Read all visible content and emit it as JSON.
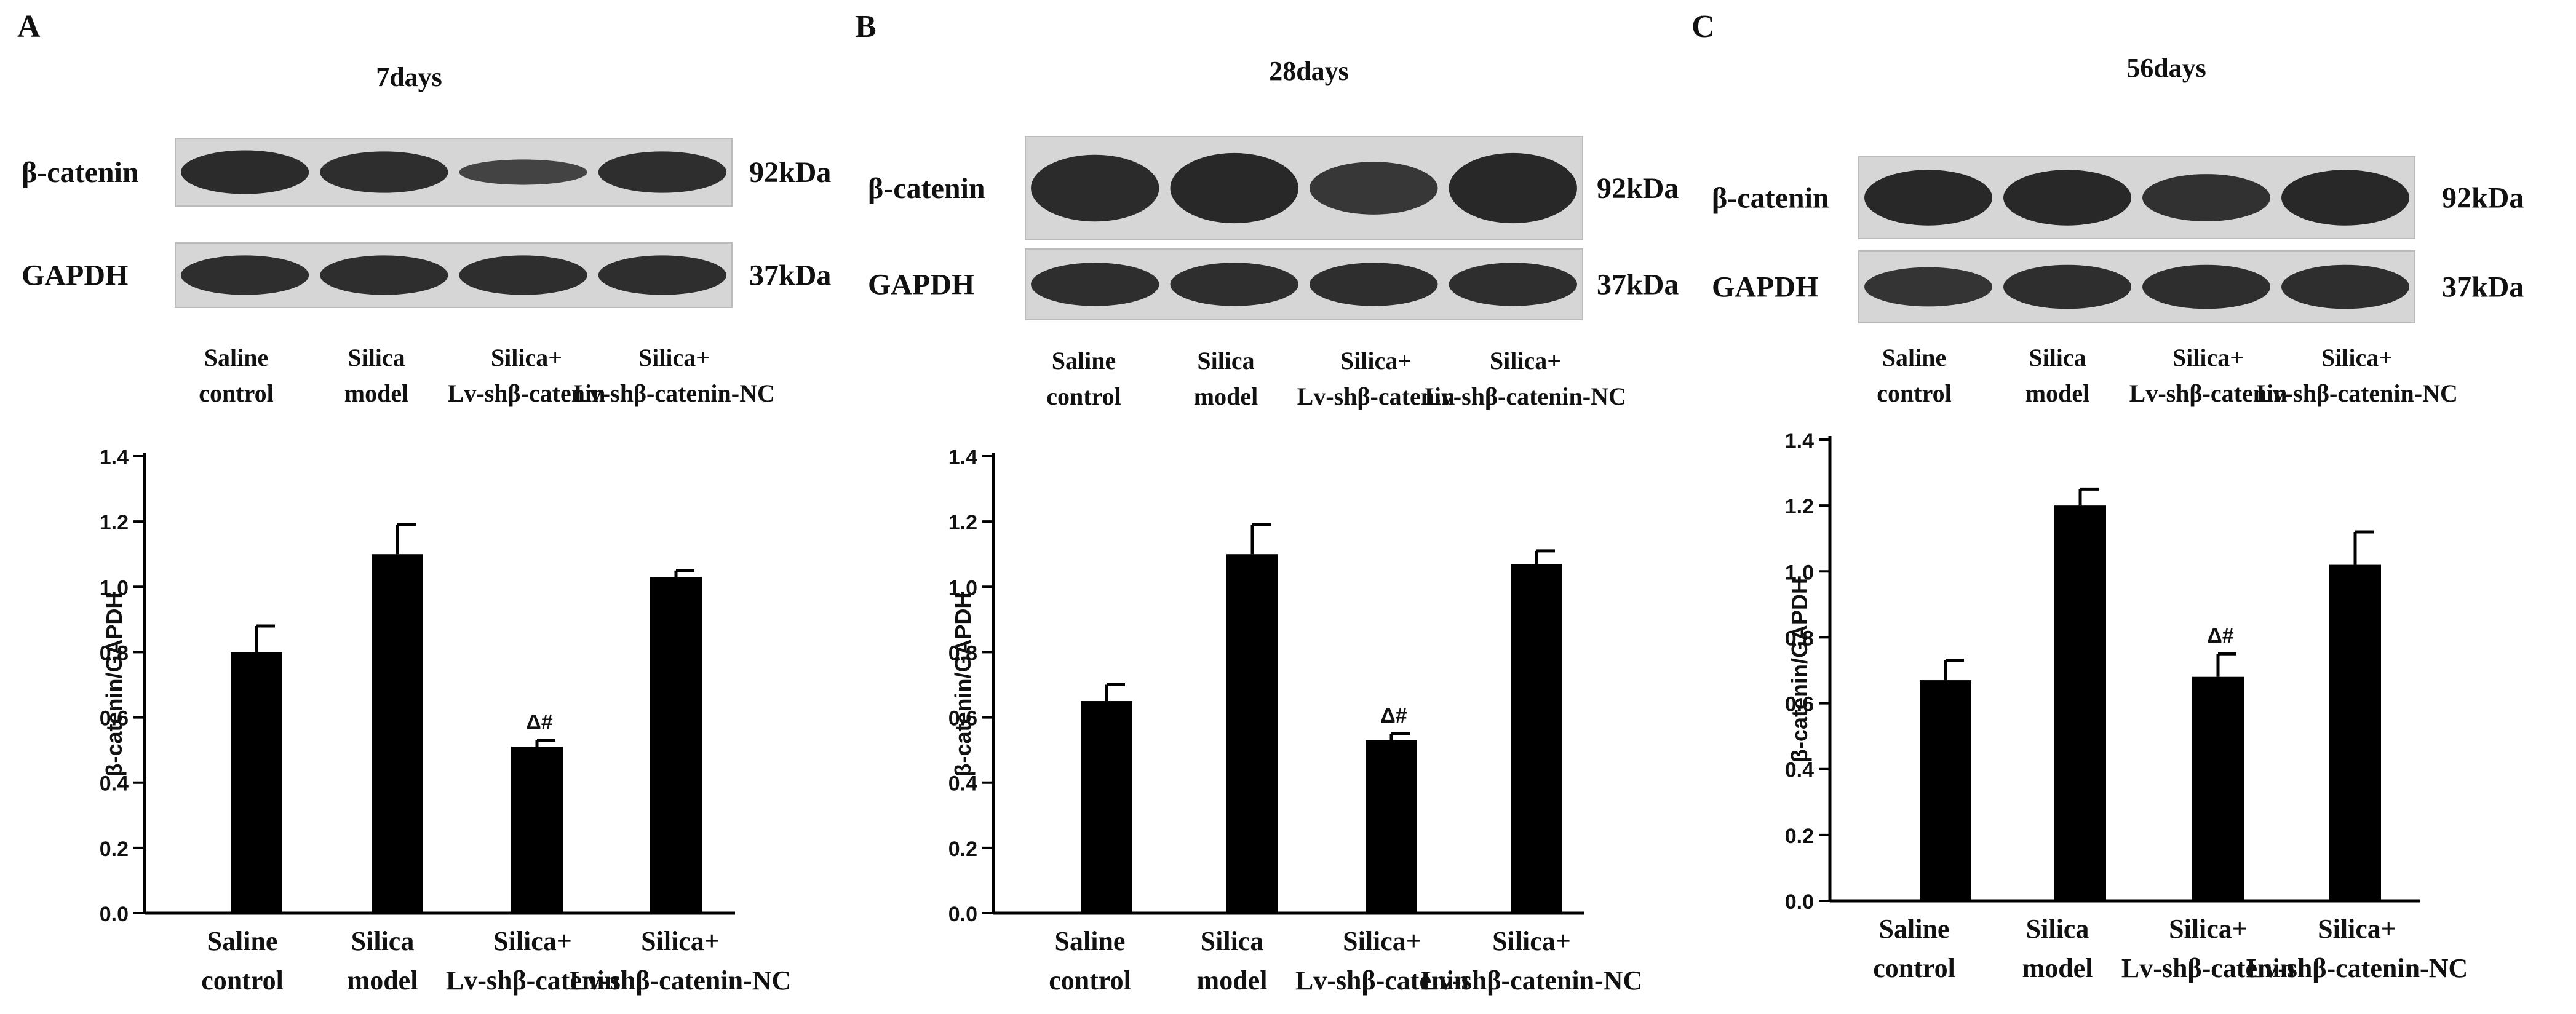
{
  "panels": [
    {
      "letter": "A",
      "title": "7days",
      "blot_rows": [
        {
          "protein": "β-catenin",
          "size": "92kDa"
        },
        {
          "protein": "GAPDH",
          "size": "37kDa"
        }
      ],
      "lane_labels": [
        [
          "Saline",
          "control"
        ],
        [
          "Silica",
          "model"
        ],
        [
          "Silica+",
          "Lv-shβ-catenin"
        ],
        [
          "Silica+",
          "Lv-shβ-catenin-NC"
        ]
      ]
    },
    {
      "letter": "B",
      "title": "28days",
      "blot_rows": [
        {
          "protein": "β-catenin",
          "size": "92kDa"
        },
        {
          "protein": "GAPDH",
          "size": "37kDa"
        }
      ],
      "lane_labels": [
        [
          "Saline",
          "control"
        ],
        [
          "Silica",
          "model"
        ],
        [
          "Silica+",
          "Lv-shβ-catenin"
        ],
        [
          "Silica+",
          "Lv-shβ-catenin-NC"
        ]
      ]
    },
    {
      "letter": "C",
      "title": "56days",
      "blot_rows": [
        {
          "protein": "β-catenin",
          "size": "92kDa"
        },
        {
          "protein": "GAPDH",
          "size": "37kDa"
        }
      ],
      "lane_labels": [
        [
          "Saline",
          "control"
        ],
        [
          "Silica",
          "model"
        ],
        [
          "Silica+",
          "Lv-shβ-catenin"
        ],
        [
          "Silica+",
          "Lv-shβ-catenin-NC"
        ]
      ]
    }
  ],
  "chart_data": [
    {
      "type": "bar",
      "panel": "A",
      "categories": [
        [
          "Saline",
          "control"
        ],
        [
          "Silica",
          "model"
        ],
        [
          "Silica+",
          "Lv-shβ-catenin"
        ],
        [
          "Silica+",
          "Lv-shβ-catenin-NC"
        ]
      ],
      "values": [
        0.8,
        1.1,
        0.51,
        1.03
      ],
      "errors": [
        0.08,
        0.09,
        0.02,
        0.02
      ],
      "annotations": [
        "",
        "",
        "Δ#",
        ""
      ],
      "ylabel": "β-catenin/GAPDH",
      "xlabel": "",
      "ylim": [
        0,
        1.4
      ],
      "yticks": [
        "0.0",
        "0.2",
        "0.4",
        "0.6",
        "0.8",
        "1.0",
        "1.2",
        "1.4"
      ],
      "bar_color": "#000000",
      "grid": false
    },
    {
      "type": "bar",
      "panel": "B",
      "categories": [
        [
          "Saline",
          "control"
        ],
        [
          "Silica",
          "model"
        ],
        [
          "Silica+",
          "Lv-shβ-catenin"
        ],
        [
          "Silica+",
          "Lv-shβ-catenin-NC"
        ]
      ],
      "values": [
        0.65,
        1.1,
        0.53,
        1.07
      ],
      "errors": [
        0.05,
        0.09,
        0.02,
        0.04
      ],
      "annotations": [
        "",
        "",
        "Δ#",
        ""
      ],
      "ylabel": "β-catenin/GAPDH",
      "xlabel": "",
      "ylim": [
        0,
        1.4
      ],
      "yticks": [
        "0.0",
        "0.2",
        "0.4",
        "0.6",
        "0.8",
        "1.0",
        "1.2",
        "1.4"
      ],
      "bar_color": "#000000",
      "grid": false
    },
    {
      "type": "bar",
      "panel": "C",
      "categories": [
        [
          "Saline",
          "control"
        ],
        [
          "Silica",
          "model"
        ],
        [
          "Silica+",
          "Lv-shβ-catenin"
        ],
        [
          "Silica+",
          "Lv-shβ-catenin-NC"
        ]
      ],
      "values": [
        0.67,
        1.2,
        0.68,
        1.02
      ],
      "errors": [
        0.06,
        0.05,
        0.07,
        0.1
      ],
      "annotations": [
        "",
        "",
        "Δ#",
        ""
      ],
      "ylabel": "β-catenin/GAPDH",
      "xlabel": "",
      "ylim": [
        0,
        1.4
      ],
      "yticks": [
        "0.0",
        "0.2",
        "0.4",
        "0.6",
        "0.8",
        "1.0",
        "1.2",
        "1.4"
      ],
      "bar_color": "#000000",
      "grid": false
    }
  ]
}
